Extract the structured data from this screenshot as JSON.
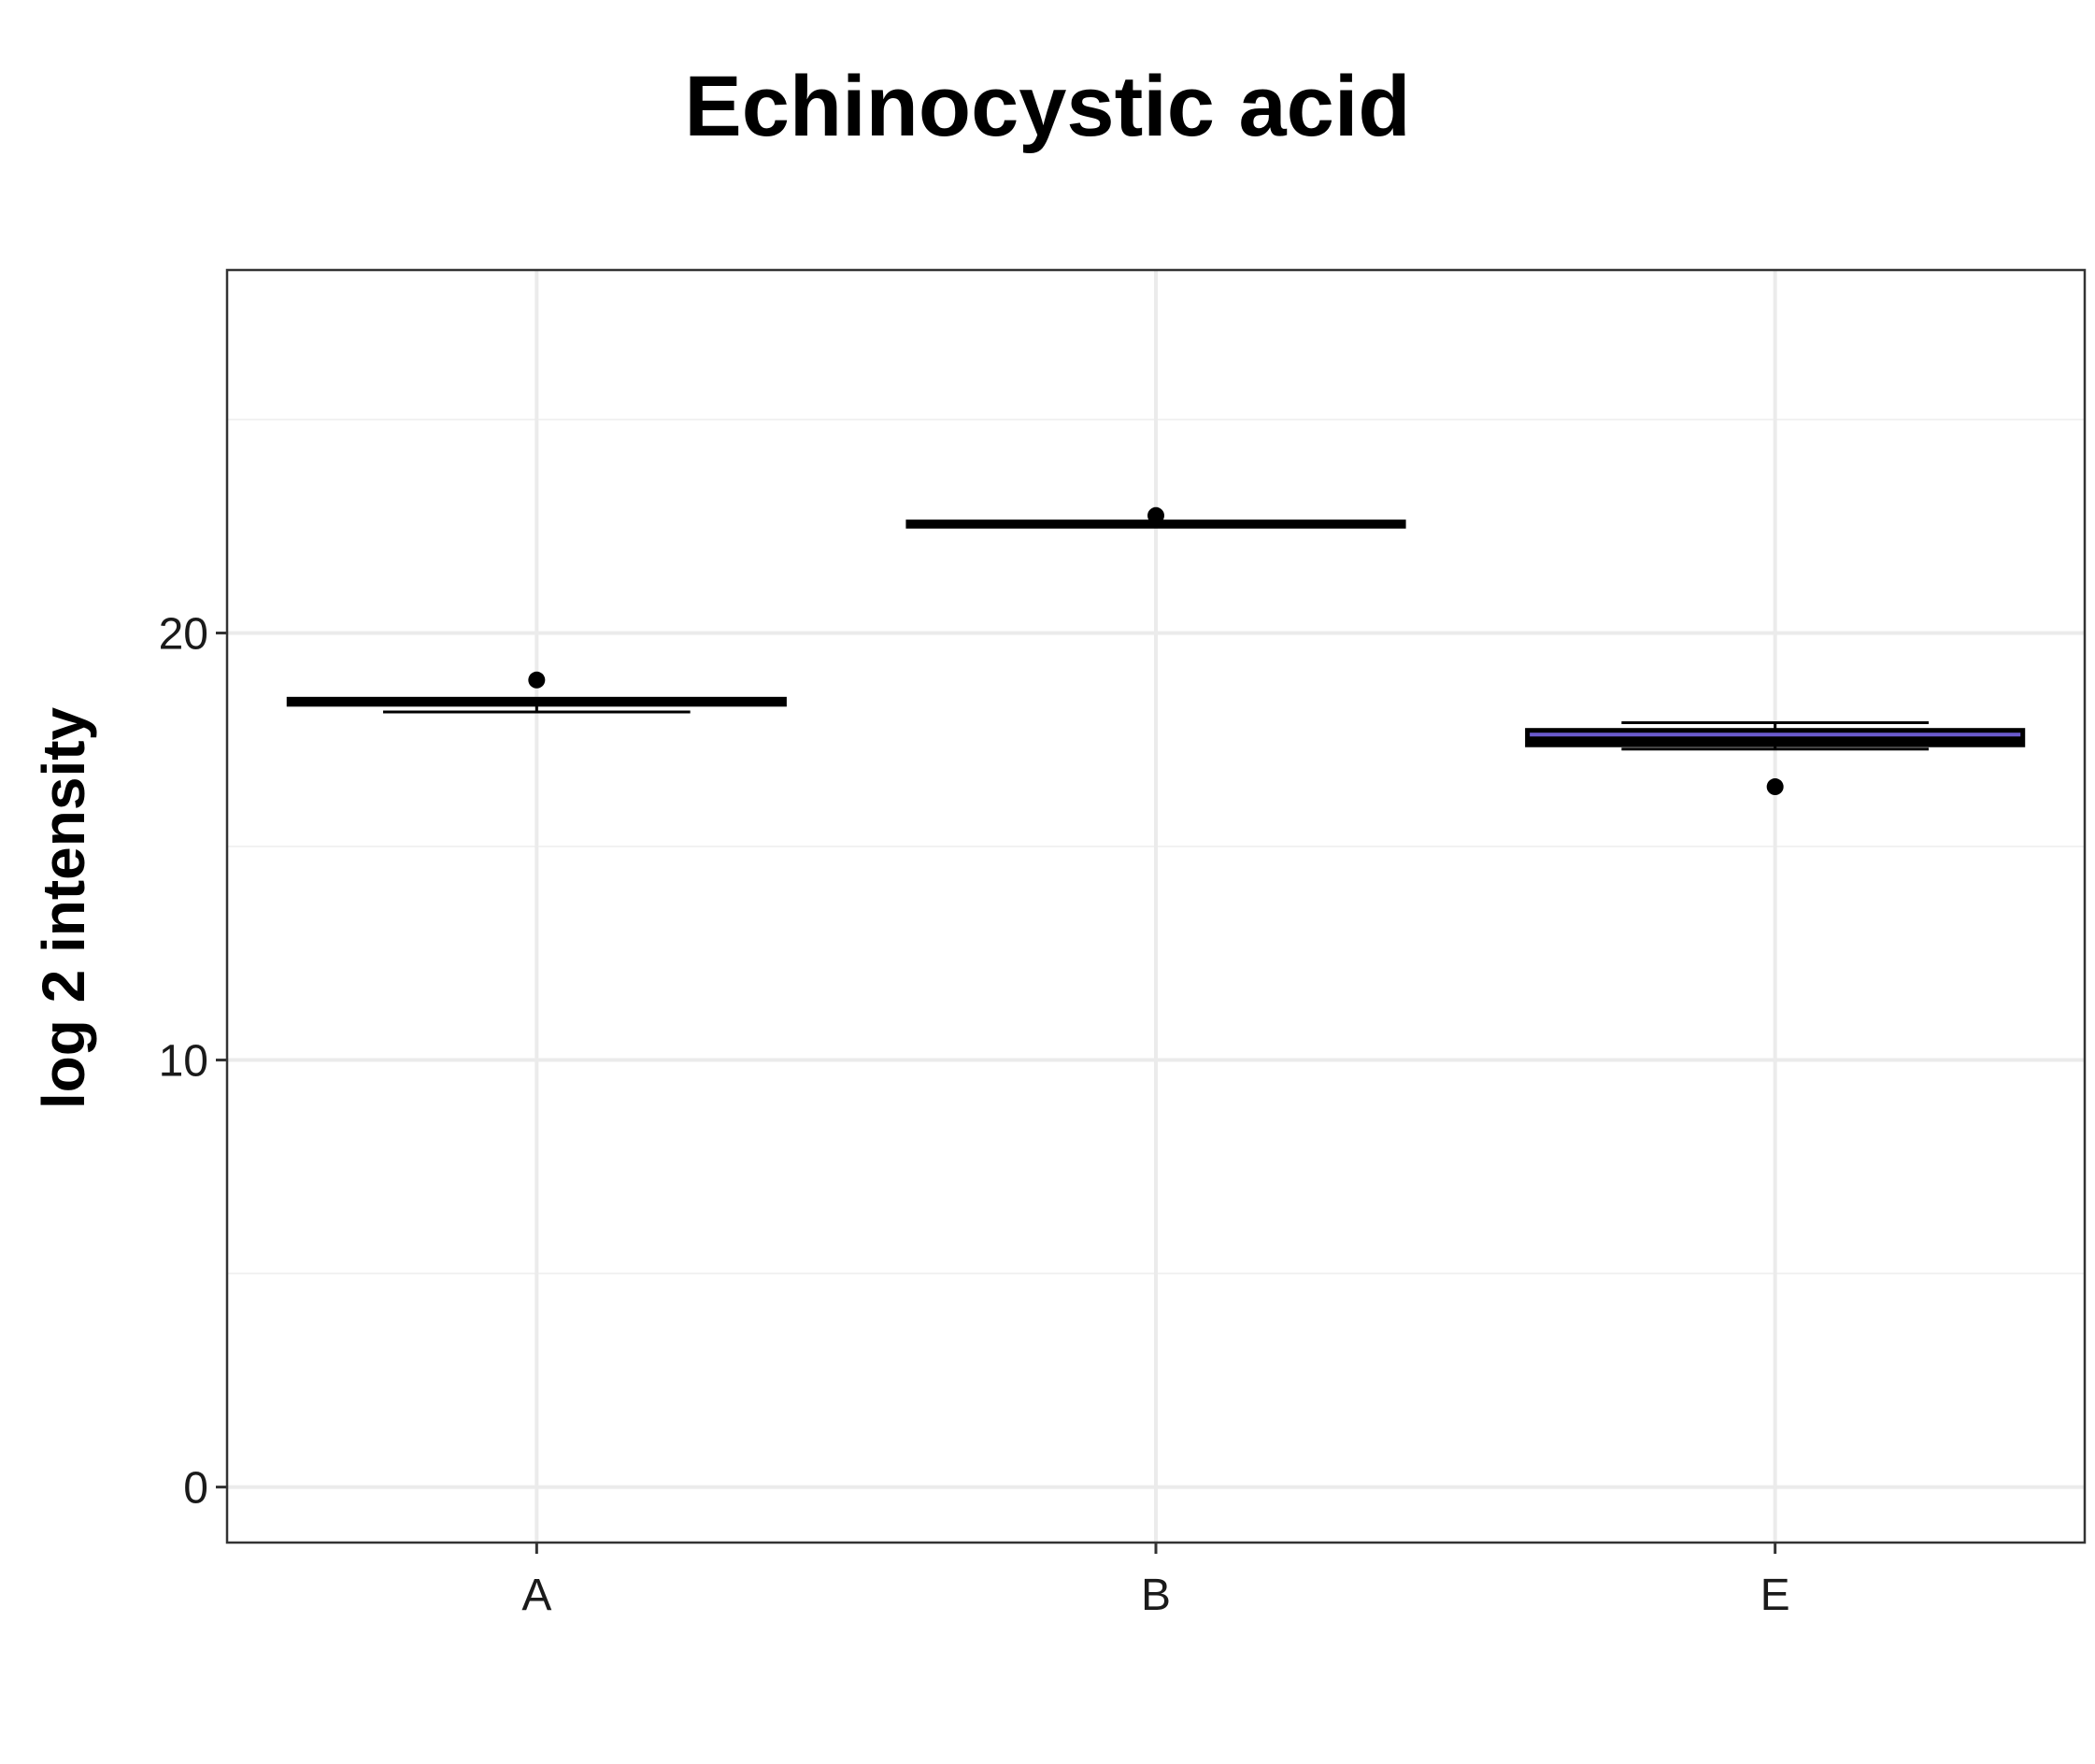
{
  "chart_data": {
    "type": "box",
    "title": "Echinocystic acid",
    "xlabel": "",
    "ylabel": "log 2 intensity",
    "ylim": [
      -1.3,
      28.5
    ],
    "yticks": [
      0,
      10,
      20
    ],
    "grid": true,
    "categories": [
      "A",
      "B",
      "E"
    ],
    "boxes": [
      {
        "category": "A",
        "whisker_low": 18.15,
        "q1": 18.33,
        "median": 18.4,
        "q3": 18.45,
        "whisker_high": 18.45,
        "outliers": [
          18.9
        ],
        "fill": "#ffffff"
      },
      {
        "category": "B",
        "whisker_low": 22.5,
        "q1": 22.5,
        "median": 22.55,
        "q3": 22.6,
        "whisker_high": 22.6,
        "outliers": [
          22.75
        ],
        "fill": "#ffffff"
      },
      {
        "category": "E",
        "whisker_low": 17.28,
        "q1": 17.38,
        "median": 17.5,
        "q3": 17.72,
        "whisker_high": 17.9,
        "outliers": [
          16.4
        ],
        "fill": "#6a5acd"
      }
    ]
  }
}
